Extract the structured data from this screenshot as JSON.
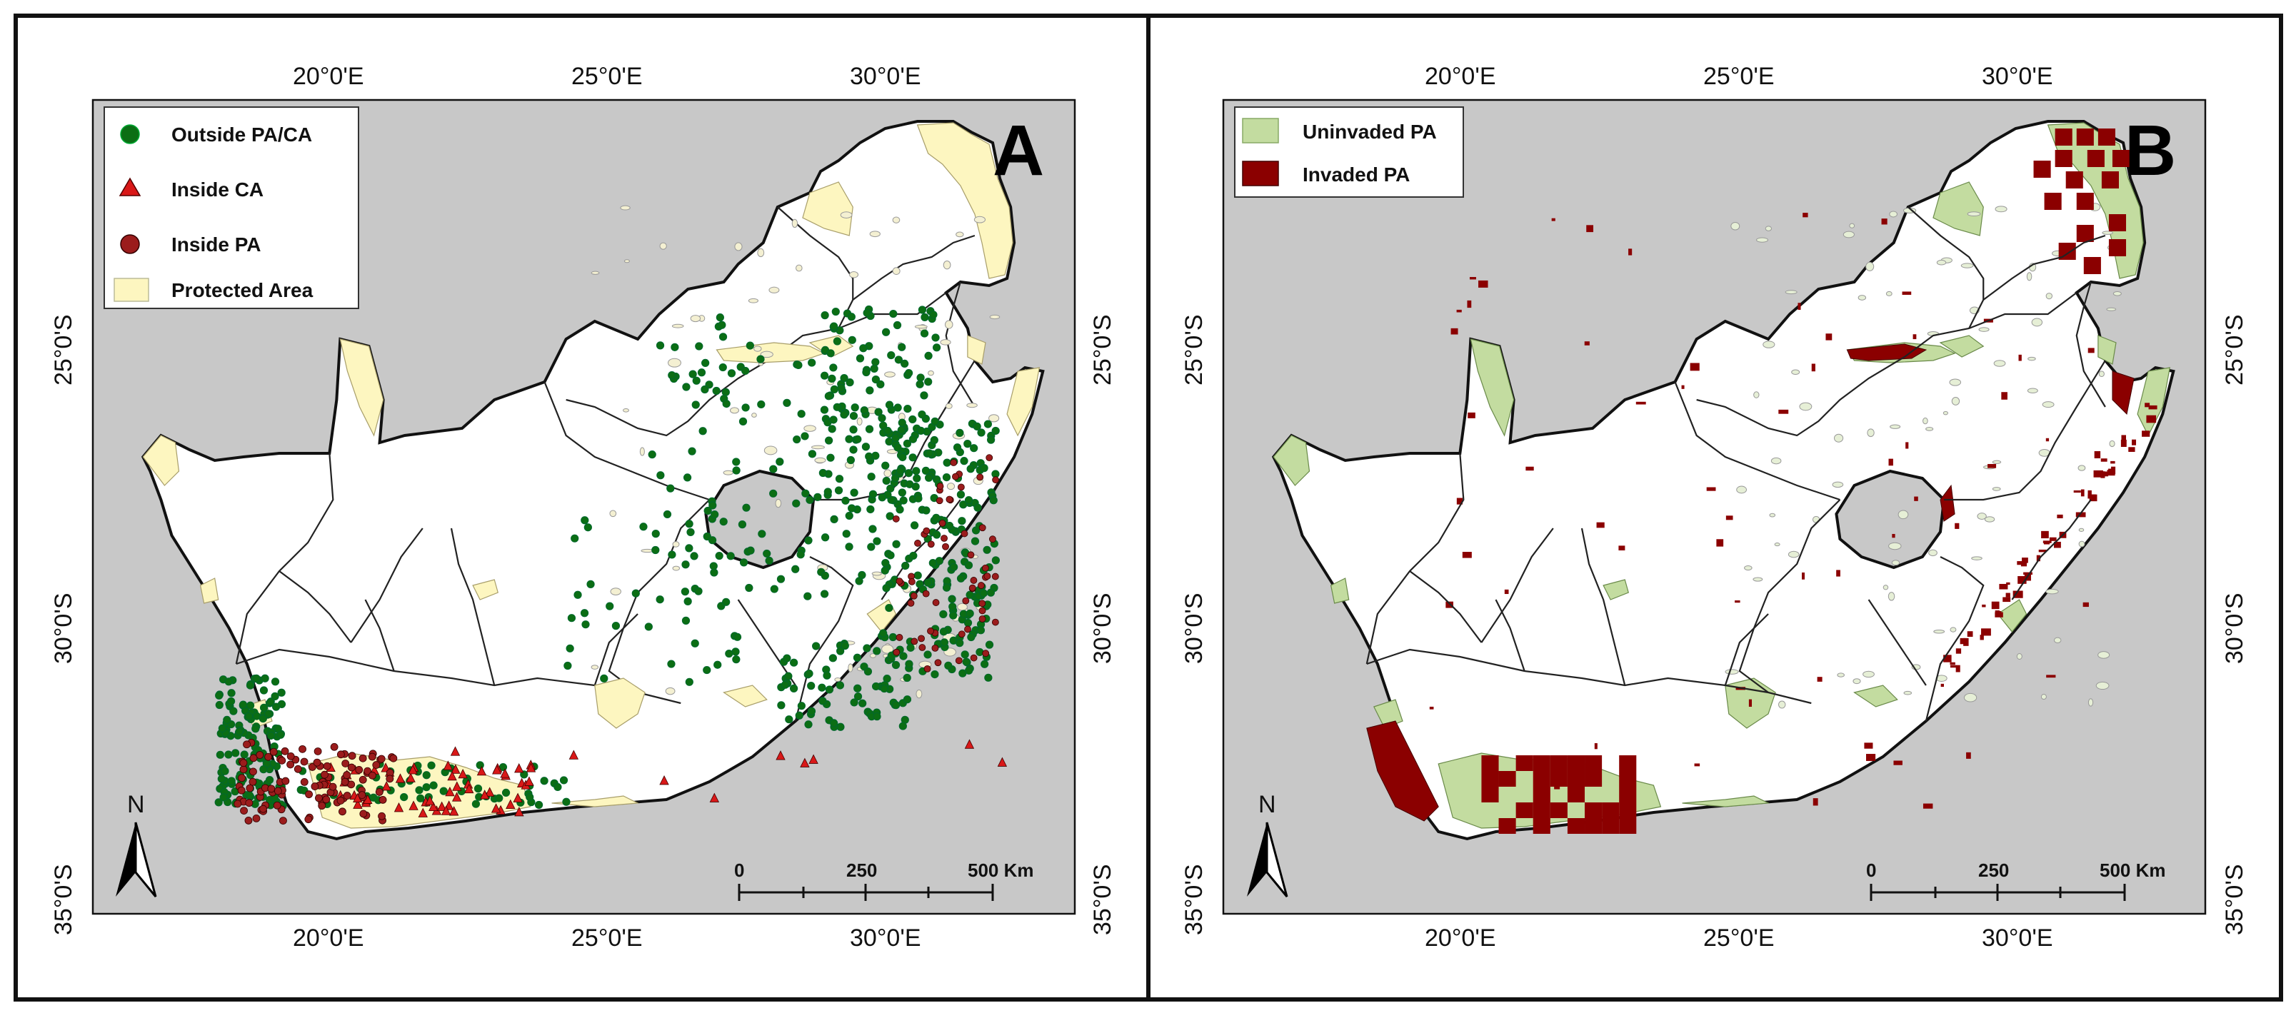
{
  "colors": {
    "ocean": "#c8c8c8",
    "land": "#ffffff",
    "protected_area": "#fdf6c0",
    "outside_pa_ca": "#0b6e14",
    "inside_ca": "#d91818",
    "inside_pa": "#9b1c1c",
    "uninvaded_pa": "#c3dca0",
    "invaded_pa": "#8b0000",
    "border": "#111111"
  },
  "axes": {
    "top_lon_labels": [
      "20°0'E",
      "25°0'E",
      "30°0'E"
    ],
    "bottom_lon_labels": [
      "20°0'E",
      "25°0'E",
      "30°0'E"
    ],
    "lat_labels": [
      "25°0'S",
      "30°0'S",
      "35°0'S"
    ]
  },
  "panel_a": {
    "letter": "A",
    "legend": {
      "outside": "Outside PA/CA",
      "inside_ca": "Inside CA",
      "inside_pa": "Inside PA",
      "protected": "Protected Area"
    }
  },
  "panel_b": {
    "letter": "B",
    "legend": {
      "uninvaded": "Uninvaded PA",
      "invaded": "Invaded PA"
    }
  },
  "scale_bar": {
    "labels": [
      "0",
      "250",
      "500 Km"
    ]
  },
  "north_arrow": {
    "label": "N"
  }
}
